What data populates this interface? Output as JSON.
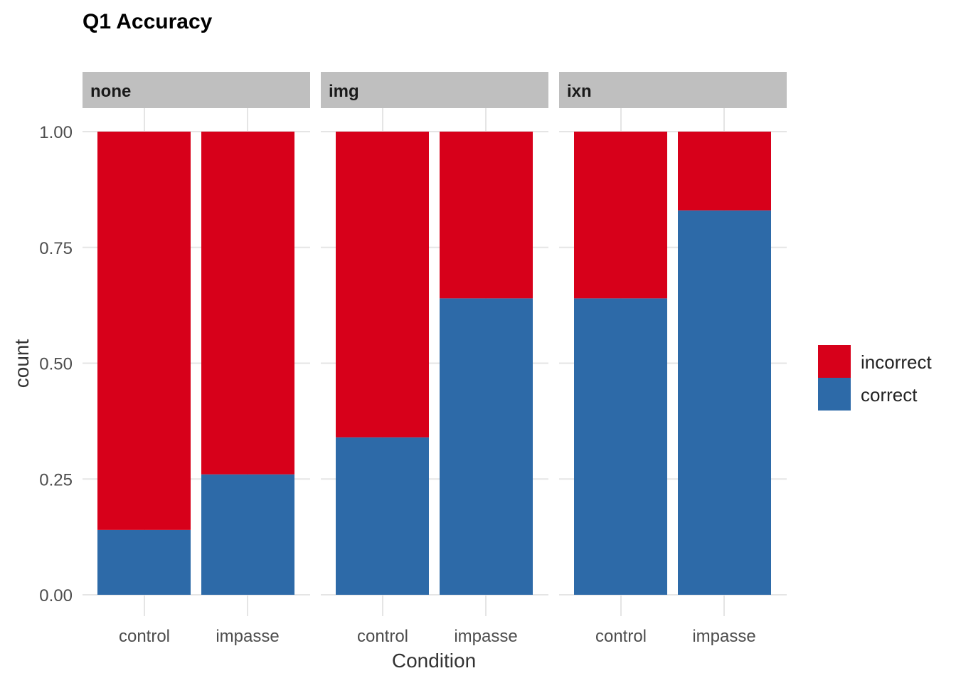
{
  "chart_data": {
    "type": "bar",
    "stacked": true,
    "title": "Q1 Accuracy",
    "xlabel": "Condition",
    "ylabel": "count",
    "ylim": [
      0,
      1
    ],
    "y_ticks": [
      "0.00",
      "0.25",
      "0.50",
      "0.75",
      "1.00"
    ],
    "y_tick_values": [
      0,
      0.25,
      0.5,
      0.75,
      1
    ],
    "categories": [
      "control",
      "impasse"
    ],
    "legend": {
      "position": "right",
      "entries": [
        "incorrect",
        "correct"
      ]
    },
    "colors": {
      "incorrect": "#d7001a",
      "correct": "#2d6aa8",
      "strip": "#bfbfbf"
    },
    "grid": true,
    "panels": [
      {
        "name": "none",
        "series": [
          {
            "name": "correct",
            "values": [
              0.14,
              0.26
            ]
          },
          {
            "name": "incorrect",
            "values": [
              0.86,
              0.74
            ]
          }
        ]
      },
      {
        "name": "img",
        "series": [
          {
            "name": "correct",
            "values": [
              0.34,
              0.64
            ]
          },
          {
            "name": "incorrect",
            "values": [
              0.66,
              0.36
            ]
          }
        ]
      },
      {
        "name": "ixn",
        "series": [
          {
            "name": "correct",
            "values": [
              0.64,
              0.83
            ]
          },
          {
            "name": "incorrect",
            "values": [
              0.36,
              0.17
            ]
          }
        ]
      }
    ]
  }
}
